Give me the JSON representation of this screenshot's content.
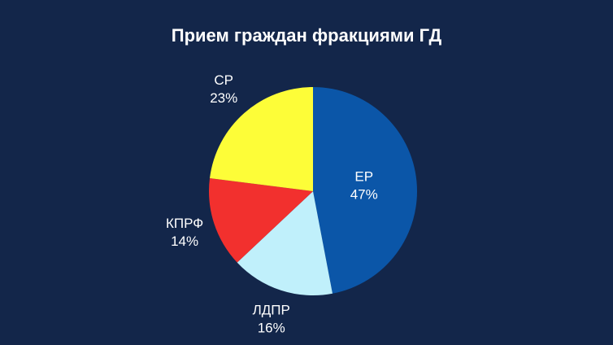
{
  "chart_data": {
    "type": "pie",
    "title": "Прием граждан фракциями ГД",
    "categories": [
      "ЕР",
      "ЛДПР",
      "КПРФ",
      "СР"
    ],
    "values": [
      47,
      16,
      14,
      23
    ],
    "value_labels": [
      "47%",
      "16%",
      "14%",
      "23%"
    ],
    "colors": [
      "#0b56a8",
      "#c0f0fb",
      "#f2302e",
      "#fdfd38"
    ]
  }
}
